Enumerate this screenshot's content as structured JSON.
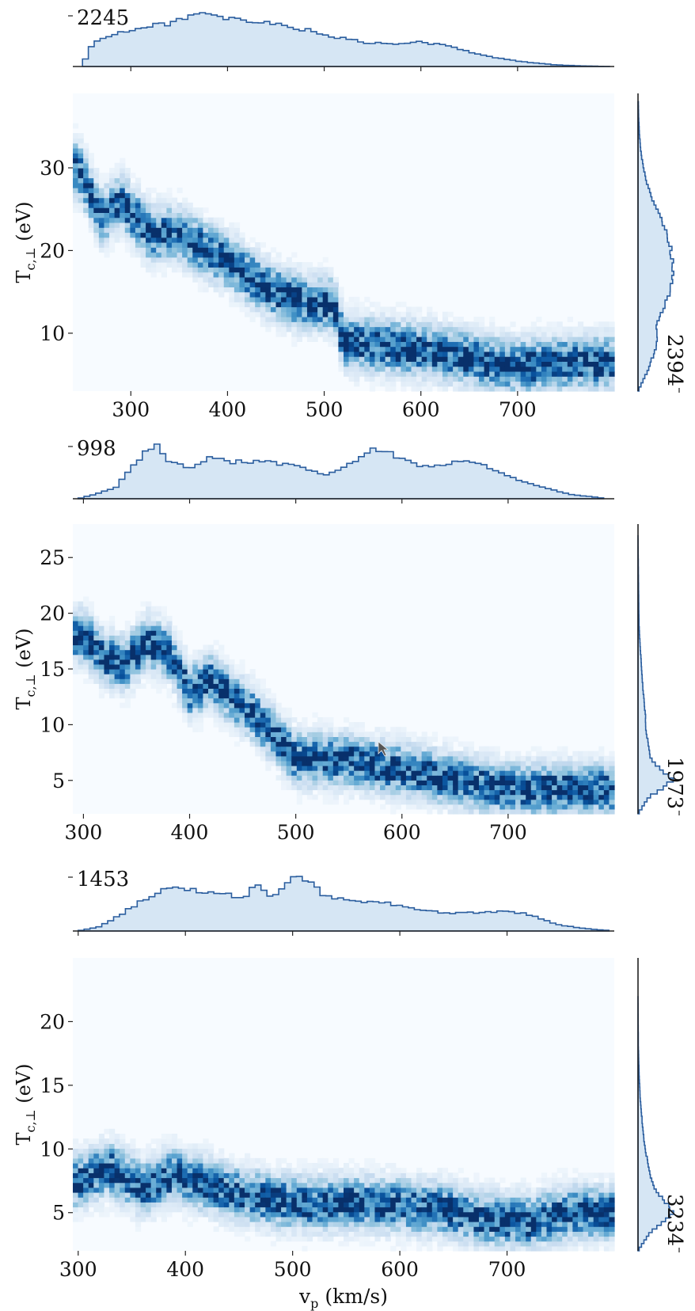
{
  "chart_data": [
    {
      "type": "heatmap",
      "xlabel": "",
      "ylabel": "T_c,⊥ (eV)",
      "ylabel_main": "T",
      "ylabel_sub": "c,⊥",
      "ylabel_unit": "(eV)",
      "xlim": [
        240,
        800
      ],
      "ylim": [
        3,
        39
      ],
      "xticks": [
        300,
        400,
        500,
        600,
        700
      ],
      "yticks": [
        10,
        20,
        30
      ],
      "top_hist_max_label": "2245",
      "right_hist_max_label": "2394",
      "ridge": [
        [
          245,
          30
        ],
        [
          270,
          24
        ],
        [
          290,
          26
        ],
        [
          320,
          22
        ],
        [
          350,
          22
        ],
        [
          380,
          20
        ],
        [
          410,
          18
        ],
        [
          440,
          15.5
        ],
        [
          470,
          14
        ],
        [
          500,
          13.5
        ],
        [
          510,
          13.5
        ],
        [
          520,
          9
        ],
        [
          560,
          8.5
        ],
        [
          600,
          8
        ],
        [
          650,
          7
        ],
        [
          700,
          6
        ],
        [
          760,
          6.5
        ],
        [
          795,
          6.5
        ]
      ],
      "top_hist": [
        [
          250,
          0.02
        ],
        [
          260,
          0.42
        ],
        [
          280,
          0.62
        ],
        [
          300,
          0.68
        ],
        [
          320,
          0.76
        ],
        [
          340,
          0.82
        ],
        [
          360,
          0.96
        ],
        [
          375,
          1.0
        ],
        [
          390,
          0.92
        ],
        [
          420,
          0.86
        ],
        [
          450,
          0.8
        ],
        [
          480,
          0.7
        ],
        [
          510,
          0.56
        ],
        [
          540,
          0.46
        ],
        [
          570,
          0.42
        ],
        [
          600,
          0.46
        ],
        [
          620,
          0.42
        ],
        [
          650,
          0.28
        ],
        [
          680,
          0.16
        ],
        [
          710,
          0.08
        ],
        [
          740,
          0.03
        ],
        [
          770,
          0.01
        ],
        [
          795,
          0.0
        ]
      ],
      "right_hist": [
        [
          3,
          0.0
        ],
        [
          5,
          0.22
        ],
        [
          7,
          0.4
        ],
        [
          9,
          0.55
        ],
        [
          11,
          0.52
        ],
        [
          14,
          0.8
        ],
        [
          16,
          0.95
        ],
        [
          18,
          1.0
        ],
        [
          20,
          0.92
        ],
        [
          22,
          0.82
        ],
        [
          24,
          0.62
        ],
        [
          26,
          0.42
        ],
        [
          28,
          0.26
        ],
        [
          30,
          0.15
        ],
        [
          32,
          0.08
        ],
        [
          34,
          0.04
        ],
        [
          36,
          0.02
        ],
        [
          38,
          0.01
        ]
      ],
      "colormap": "Blues",
      "hist_fill": "#d6e6f4",
      "hist_line": "#2a5d9e"
    },
    {
      "type": "heatmap",
      "xlabel": "",
      "ylabel": "T_c,⊥ (eV)",
      "ylabel_main": "T",
      "ylabel_sub": "c,⊥",
      "ylabel_unit": "(eV)",
      "xlim": [
        290,
        800
      ],
      "ylim": [
        2,
        28
      ],
      "xticks": [
        300,
        400,
        500,
        600,
        700
      ],
      "yticks": [
        5,
        10,
        15,
        20,
        25
      ],
      "top_hist_max_label": "998",
      "right_hist_max_label": "1973",
      "ridge": [
        [
          300,
          18
        ],
        [
          320,
          16
        ],
        [
          340,
          15.5
        ],
        [
          360,
          17.5
        ],
        [
          380,
          16.5
        ],
        [
          400,
          13
        ],
        [
          420,
          14
        ],
        [
          440,
          12.5
        ],
        [
          460,
          11
        ],
        [
          480,
          9
        ],
        [
          500,
          7
        ],
        [
          550,
          6.8
        ],
        [
          600,
          6
        ],
        [
          650,
          5
        ],
        [
          700,
          4.2
        ],
        [
          760,
          4.2
        ],
        [
          795,
          4.2
        ]
      ],
      "top_hist": [
        [
          295,
          0.0
        ],
        [
          310,
          0.08
        ],
        [
          330,
          0.2
        ],
        [
          345,
          0.55
        ],
        [
          360,
          0.88
        ],
        [
          368,
          1.0
        ],
        [
          380,
          0.72
        ],
        [
          400,
          0.58
        ],
        [
          420,
          0.78
        ],
        [
          440,
          0.68
        ],
        [
          470,
          0.68
        ],
        [
          500,
          0.6
        ],
        [
          530,
          0.45
        ],
        [
          550,
          0.62
        ],
        [
          570,
          0.88
        ],
        [
          580,
          0.92
        ],
        [
          600,
          0.72
        ],
        [
          620,
          0.58
        ],
        [
          640,
          0.62
        ],
        [
          660,
          0.72
        ],
        [
          680,
          0.6
        ],
        [
          700,
          0.42
        ],
        [
          730,
          0.22
        ],
        [
          760,
          0.08
        ],
        [
          790,
          0.01
        ]
      ],
      "right_hist": [
        [
          2,
          0.0
        ],
        [
          3.5,
          0.3
        ],
        [
          5,
          1.0
        ],
        [
          6,
          0.62
        ],
        [
          7,
          0.36
        ],
        [
          9,
          0.24
        ],
        [
          11,
          0.2
        ],
        [
          13,
          0.14
        ],
        [
          15,
          0.1
        ],
        [
          17,
          0.06
        ],
        [
          19,
          0.03
        ],
        [
          21,
          0.02
        ],
        [
          24,
          0.01
        ],
        [
          27,
          0.0
        ]
      ],
      "colormap": "Blues",
      "hist_fill": "#d6e6f4",
      "hist_line": "#2a5d9e"
    },
    {
      "type": "heatmap",
      "xlabel": "v_p (km/s)",
      "xlabel_main": "v",
      "xlabel_sub": "p",
      "xlabel_unit": "(km/s)",
      "ylabel": "T_c,⊥ (eV)",
      "ylabel_main": "T",
      "ylabel_sub": "c,⊥",
      "ylabel_unit": "(eV)",
      "xlim": [
        295,
        800
      ],
      "ylim": [
        2,
        25
      ],
      "xticks": [
        300,
        400,
        500,
        600,
        700
      ],
      "yticks": [
        5,
        10,
        15,
        20
      ],
      "top_hist_max_label": "1453",
      "right_hist_max_label": "3234",
      "ridge": [
        [
          300,
          7.5
        ],
        [
          330,
          8.5
        ],
        [
          360,
          7
        ],
        [
          390,
          8
        ],
        [
          420,
          7.2
        ],
        [
          450,
          6.5
        ],
        [
          480,
          6
        ],
        [
          520,
          5.7
        ],
        [
          560,
          5.8
        ],
        [
          600,
          5.6
        ],
        [
          640,
          5.3
        ],
        [
          680,
          4.5
        ],
        [
          720,
          4.3
        ],
        [
          760,
          5
        ],
        [
          795,
          5
        ]
      ],
      "top_hist": [
        [
          300,
          0.0
        ],
        [
          320,
          0.08
        ],
        [
          340,
          0.3
        ],
        [
          360,
          0.55
        ],
        [
          385,
          0.8
        ],
        [
          410,
          0.72
        ],
        [
          430,
          0.68
        ],
        [
          455,
          0.6
        ],
        [
          465,
          0.85
        ],
        [
          480,
          0.6
        ],
        [
          500,
          0.96
        ],
        [
          515,
          0.9
        ],
        [
          530,
          0.62
        ],
        [
          560,
          0.52
        ],
        [
          590,
          0.5
        ],
        [
          620,
          0.36
        ],
        [
          650,
          0.32
        ],
        [
          680,
          0.34
        ],
        [
          700,
          0.36
        ],
        [
          720,
          0.3
        ],
        [
          750,
          0.1
        ],
        [
          780,
          0.03
        ],
        [
          795,
          0.01
        ]
      ],
      "right_hist": [
        [
          2,
          0.0
        ],
        [
          3.5,
          0.35
        ],
        [
          5,
          1.0
        ],
        [
          6,
          0.7
        ],
        [
          7,
          0.45
        ],
        [
          8.5,
          0.3
        ],
        [
          10,
          0.2
        ],
        [
          12,
          0.12
        ],
        [
          14,
          0.06
        ],
        [
          16,
          0.03
        ],
        [
          18,
          0.01
        ],
        [
          22,
          0.0
        ]
      ],
      "colormap": "Blues",
      "hist_fill": "#d6e6f4",
      "hist_line": "#2a5d9e"
    }
  ]
}
